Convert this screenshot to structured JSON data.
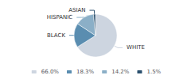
{
  "chart_data": {
    "type": "pie",
    "categories": [
      "WHITE",
      "BLACK",
      "HISPANIC",
      "ASIAN"
    ],
    "values": [
      66.0,
      18.3,
      14.2,
      1.5
    ],
    "value_labels": [
      "66.0%",
      "18.3%",
      "14.2%",
      "1.5%"
    ],
    "colors": [
      "#cdd5e0",
      "#5a8db0",
      "#8bafc7",
      "#2b506e"
    ],
    "legend": "bottom"
  }
}
